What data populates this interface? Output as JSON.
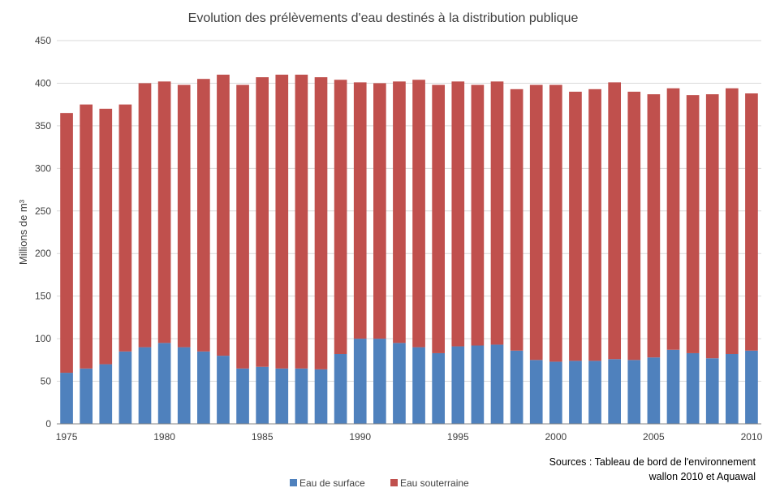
{
  "chart_data": {
    "type": "bar",
    "stacked": true,
    "title": "Evolution des prélèvements d'eau destinés à la distribution publique",
    "ylabel": "Millions de m³",
    "xlabel": "",
    "ylim": [
      0,
      450
    ],
    "yticks": [
      0,
      50,
      100,
      150,
      200,
      250,
      300,
      350,
      400,
      450
    ],
    "grid": true,
    "legend_position": "bottom",
    "x": [
      1975,
      1976,
      1977,
      1978,
      1979,
      1980,
      1981,
      1982,
      1983,
      1984,
      1985,
      1986,
      1987,
      1988,
      1989,
      1990,
      1991,
      1992,
      1993,
      1994,
      1995,
      1996,
      1997,
      1998,
      1999,
      2000,
      2001,
      2002,
      2003,
      2004,
      2005,
      2006,
      2007,
      2008,
      2009,
      2010
    ],
    "xtick_labels": [
      "1975",
      "1980",
      "1985",
      "1990",
      "1995",
      "2000",
      "2005",
      "2010"
    ],
    "xtick_years": [
      1975,
      1980,
      1985,
      1990,
      1995,
      2000,
      2005,
      2010
    ],
    "series": [
      {
        "name": "Eau de surface",
        "color": "#4f81bd",
        "values": [
          60,
          65,
          70,
          85,
          90,
          95,
          90,
          85,
          80,
          65,
          67,
          65,
          65,
          64,
          82,
          100,
          100,
          95,
          90,
          83,
          91,
          92,
          93,
          86,
          75,
          73,
          74,
          74,
          76,
          75,
          78,
          87,
          83,
          77,
          82,
          86
        ]
      },
      {
        "name": "Eau souterraine",
        "color": "#c0504d",
        "values": [
          305,
          310,
          300,
          290,
          310,
          307,
          308,
          320,
          330,
          333,
          340,
          345,
          345,
          343,
          322,
          301,
          300,
          307,
          314,
          315,
          311,
          306,
          309,
          307,
          323,
          325,
          316,
          319,
          325,
          315,
          309,
          307,
          303,
          310,
          312,
          302
        ]
      }
    ]
  },
  "source": {
    "line1": "Sources : Tableau de bord de l'environnement",
    "line2": "wallon 2010 et Aquawal"
  }
}
